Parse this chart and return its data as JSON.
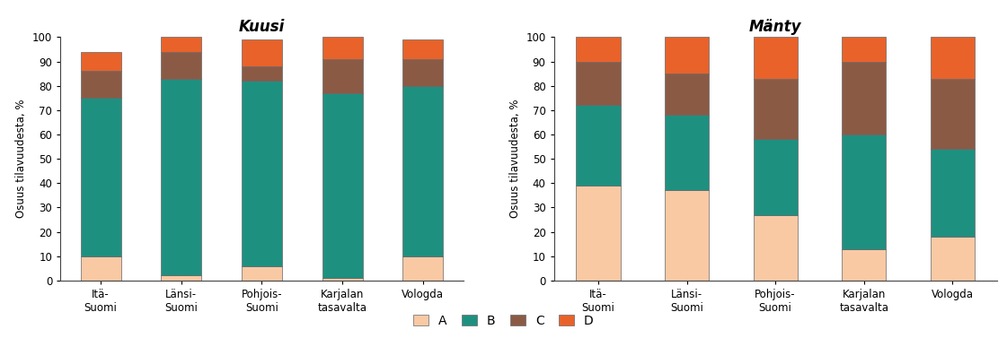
{
  "kuusi": {
    "categories": [
      "Itä-\nSuomi",
      "Länsi-\nSuomi",
      "Pohjois-\nSuomi",
      "Karjalan\ntasavalta",
      "Vologda"
    ],
    "A": [
      10,
      2,
      6,
      1,
      10
    ],
    "B": [
      65,
      81,
      76,
      76,
      70
    ],
    "C": [
      11,
      11,
      6,
      14,
      11
    ],
    "D": [
      8,
      6,
      11,
      9,
      8
    ],
    "title": "Kuusi"
  },
  "manty": {
    "categories": [
      "Itä-\nSuomi",
      "Länsi-\nSuomi",
      "Pohjois-\nSuomi",
      "Karjalan\ntasavalta",
      "Vologda"
    ],
    "A": [
      39,
      37,
      27,
      13,
      18
    ],
    "B": [
      33,
      31,
      31,
      47,
      36
    ],
    "C": [
      18,
      17,
      25,
      30,
      29
    ],
    "D": [
      10,
      15,
      17,
      10,
      17
    ],
    "title": "Mänty"
  },
  "colors": {
    "A": "#f9c9a4",
    "B": "#1e9080",
    "C": "#8b5a45",
    "D": "#e8622a"
  },
  "ylabel": "Osuus tilavuudesta, %",
  "ylim": [
    0,
    100
  ],
  "yticks": [
    0,
    10,
    20,
    30,
    40,
    50,
    60,
    70,
    80,
    90,
    100
  ],
  "bar_width": 0.5,
  "edge_color": "#666666",
  "edge_linewidth": 0.5,
  "bg_color": "#f0f0f0"
}
